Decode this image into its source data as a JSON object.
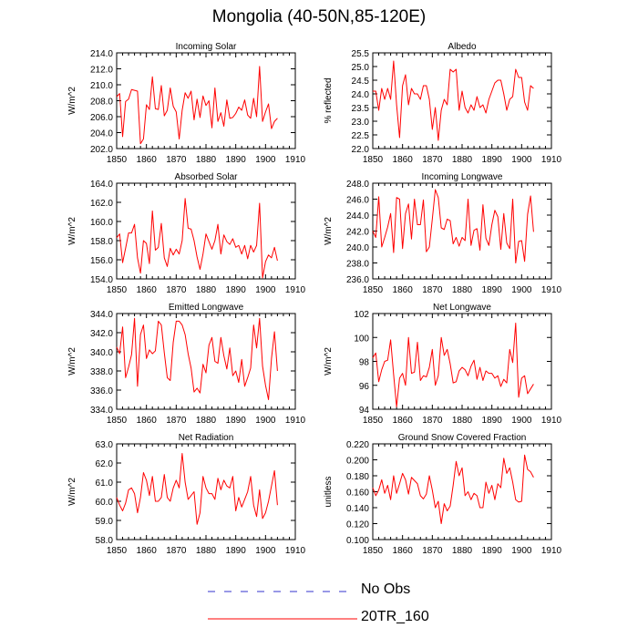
{
  "title": "Mongolia (40-50N,85-120E)",
  "colors": {
    "model": "#ff0000",
    "obs": "#3333cc",
    "axis": "#000000"
  },
  "legend": [
    {
      "label": "No Obs",
      "style": "dashed",
      "color": "#3333cc"
    },
    {
      "label": "20TR_160",
      "style": "solid",
      "color": "#ff0000"
    }
  ],
  "chart_data": [
    {
      "type": "line",
      "title": "Incoming Solar",
      "ylabel": "W/m^2",
      "xlim": [
        1850,
        1910
      ],
      "xticks": [
        1850,
        1860,
        1870,
        1880,
        1890,
        1900,
        1910
      ],
      "ylim": [
        202,
        214
      ],
      "yticks": [
        "202.0",
        "204.0",
        "206.0",
        "208.0",
        "210.0",
        "212.0",
        "214.0"
      ],
      "series": [
        {
          "name": "20TR_160",
          "x0": 1850,
          "values": [
            208.5,
            208.9,
            203.5,
            207.9,
            208.2,
            209.4,
            209.3,
            209.2,
            202.6,
            203.2,
            207.5,
            206.9,
            211.0,
            207.0,
            206.9,
            209.9,
            206.1,
            206.8,
            209.6,
            207.3,
            206.6,
            203.2,
            206.8,
            209.0,
            208.3,
            209.2,
            205.6,
            208.2,
            205.9,
            208.6,
            207.4,
            208.0,
            204.6,
            209.6,
            205.4,
            206.5,
            204.8,
            208.1,
            205.8,
            205.9,
            206.4,
            207.2,
            206.8,
            208.1,
            206.2,
            205.8,
            208.3,
            206.0,
            212.3,
            205.4,
            206.6,
            207.6,
            204.5,
            205.4,
            205.8
          ]
        }
      ]
    },
    {
      "type": "line",
      "title": "Albedo",
      "ylabel": "% reflected",
      "xlim": [
        1850,
        1910
      ],
      "xticks": [
        1850,
        1860,
        1870,
        1880,
        1890,
        1900,
        1910
      ],
      "ylim": [
        22,
        25.5
      ],
      "yticks": [
        "22.0",
        "22.5",
        "23.0",
        "23.5",
        "24.0",
        "24.5",
        "25.0",
        "25.5"
      ],
      "series": [
        {
          "name": "20TR_160",
          "x0": 1850,
          "values": [
            24.1,
            24.1,
            23.4,
            24.2,
            23.8,
            24.2,
            23.8,
            25.2,
            23.6,
            22.4,
            24.3,
            24.7,
            23.6,
            24.2,
            24.0,
            24.0,
            23.8,
            24.3,
            24.3,
            23.8,
            22.7,
            23.5,
            22.3,
            23.4,
            23.8,
            23.6,
            24.9,
            24.8,
            24.9,
            23.4,
            24.1,
            23.5,
            23.3,
            23.6,
            23.4,
            23.9,
            23.5,
            23.6,
            23.3,
            23.8,
            24.1,
            24.4,
            24.5,
            24.5,
            24.0,
            23.4,
            23.8,
            23.9,
            24.9,
            24.6,
            24.6,
            23.7,
            23.4,
            24.3,
            24.2
          ]
        }
      ]
    },
    {
      "type": "line",
      "title": "Absorbed Solar",
      "ylabel": "W/m^2",
      "xlim": [
        1850,
        1910
      ],
      "xticks": [
        1850,
        1860,
        1870,
        1880,
        1890,
        1900,
        1910
      ],
      "ylim": [
        154,
        164
      ],
      "yticks": [
        "154.0",
        "156.0",
        "158.0",
        "160.0",
        "162.0",
        "164.0"
      ],
      "series": [
        {
          "name": "20TR_160",
          "x0": 1850,
          "values": [
            158.3,
            158.7,
            155.7,
            157.2,
            158.8,
            158.8,
            159.7,
            156.2,
            154.6,
            158.0,
            157.7,
            155.6,
            161.1,
            157.0,
            157.3,
            159.8,
            156.2,
            155.3,
            157.2,
            156.5,
            157.1,
            156.6,
            158.0,
            162.4,
            159.3,
            159.2,
            158.0,
            156.3,
            155.0,
            156.6,
            158.7,
            157.9,
            157.1,
            158.0,
            159.7,
            156.6,
            158.6,
            157.9,
            157.6,
            158.2,
            157.3,
            157.5,
            156.6,
            157.5,
            156.1,
            157.5,
            156.8,
            157.5,
            161.9,
            154.1,
            155.8,
            156.5,
            156.2,
            157.3,
            155.9
          ]
        }
      ]
    },
    {
      "type": "line",
      "title": "Incoming Longwave",
      "ylabel": "W/m^2",
      "xlim": [
        1850,
        1910
      ],
      "xticks": [
        1850,
        1860,
        1870,
        1880,
        1890,
        1900,
        1910
      ],
      "ylim": [
        236,
        248
      ],
      "yticks": [
        "236.0",
        "238.0",
        "240.0",
        "242.0",
        "244.0",
        "246.0",
        "248.0"
      ],
      "series": [
        {
          "name": "20TR_160",
          "x0": 1850,
          "values": [
            242.0,
            241.2,
            246.3,
            240.0,
            241.2,
            242.5,
            244.2,
            239.3,
            246.2,
            246.0,
            239.8,
            244.2,
            245.4,
            241.0,
            246.0,
            242.8,
            242.8,
            245.9,
            239.4,
            240.0,
            243.5,
            247.2,
            246.2,
            242.4,
            242.2,
            243.5,
            243.3,
            240.4,
            241.2,
            240.1,
            241.2,
            240.8,
            246.0,
            240.2,
            242.1,
            242.3,
            239.6,
            245.3,
            241.1,
            240.2,
            242.8,
            244.6,
            243.8,
            239.7,
            244.2,
            240.5,
            239.8,
            246.0,
            238.0,
            240.7,
            240.8,
            238.2,
            244.1,
            246.4,
            241.9
          ]
        }
      ]
    },
    {
      "type": "line",
      "title": "Emitted Longwave",
      "ylabel": "W/m^2",
      "xlim": [
        1850,
        1910
      ],
      "xticks": [
        1850,
        1860,
        1870,
        1880,
        1890,
        1900,
        1910
      ],
      "ylim": [
        334,
        344
      ],
      "yticks": [
        "334.0",
        "336.0",
        "338.0",
        "340.0",
        "342.0",
        "344.0"
      ],
      "series": [
        {
          "name": "20TR_160",
          "x0": 1850,
          "values": [
            340.5,
            339.8,
            342.6,
            337.3,
            338.4,
            339.7,
            343.5,
            336.4,
            341.8,
            342.8,
            339.3,
            340.2,
            339.8,
            340.1,
            343.2,
            342.8,
            339.9,
            337.3,
            337.0,
            341.0,
            343.2,
            343.2,
            342.8,
            341.8,
            339.8,
            338.3,
            335.8,
            336.2,
            335.7,
            338.7,
            337.8,
            340.7,
            341.5,
            339.0,
            338.8,
            341.5,
            339.6,
            338.2,
            340.4,
            337.5,
            338.0,
            336.8,
            339.2,
            336.4,
            337.3,
            338.3,
            342.8,
            340.4,
            343.5,
            338.5,
            336.5,
            335.0,
            339.3,
            342.1,
            338.0
          ]
        }
      ]
    },
    {
      "type": "line",
      "title": "Net Longwave",
      "ylabel": "W/m^2",
      "xlim": [
        1850,
        1910
      ],
      "xticks": [
        1850,
        1860,
        1870,
        1880,
        1890,
        1900,
        1910
      ],
      "ylim": [
        94,
        102
      ],
      "yticks": [
        "94",
        "96",
        "98",
        "100",
        "102"
      ],
      "series": [
        {
          "name": "20TR_160",
          "x0": 1850,
          "values": [
            98.3,
            98.7,
            96.3,
            97.3,
            98.0,
            98.1,
            99.8,
            96.9,
            94.2,
            96.6,
            97.0,
            96.0,
            100.0,
            97.0,
            97.1,
            99.6,
            96.4,
            96.8,
            96.7,
            97.5,
            99.0,
            96.0,
            96.8,
            100.0,
            98.5,
            99.0,
            97.8,
            96.2,
            96.3,
            97.2,
            97.5,
            97.3,
            96.8,
            97.6,
            98.1,
            96.5,
            97.5,
            96.4,
            97.2,
            97.0,
            97.0,
            96.6,
            96.8,
            95.9,
            96.5,
            96.2,
            99.0,
            97.9,
            101.2,
            95.0,
            96.6,
            96.8,
            95.3,
            95.7,
            96.1
          ]
        }
      ]
    },
    {
      "type": "line",
      "title": "Net Radiation",
      "ylabel": "W/m^2",
      "xlim": [
        1850,
        1910
      ],
      "xticks": [
        1850,
        1860,
        1870,
        1880,
        1890,
        1900,
        1910
      ],
      "ylim": [
        58,
        63
      ],
      "yticks": [
        "58.0",
        "59.0",
        "60.0",
        "61.0",
        "62.0",
        "63.0"
      ],
      "series": [
        {
          "name": "20TR_160",
          "x0": 1850,
          "values": [
            60.2,
            59.8,
            59.5,
            59.9,
            60.6,
            60.7,
            60.4,
            59.4,
            60.2,
            61.5,
            61.1,
            60.3,
            61.3,
            60.0,
            60.0,
            60.2,
            61.4,
            60.2,
            60.0,
            60.7,
            61.1,
            60.7,
            62.5,
            61.0,
            60.1,
            60.3,
            60.5,
            58.8,
            59.4,
            61.3,
            60.7,
            60.4,
            60.4,
            60.1,
            61.2,
            60.6,
            61.1,
            60.8,
            60.7,
            61.3,
            59.5,
            60.2,
            59.7,
            60.1,
            60.5,
            61.3,
            59.8,
            59.2,
            60.6,
            59.1,
            59.4,
            60.0,
            60.8,
            61.6,
            59.8
          ]
        }
      ]
    },
    {
      "type": "line",
      "title": "Ground Snow Covered Fraction",
      "ylabel": "unitless",
      "xlim": [
        1850,
        1910
      ],
      "xticks": [
        1850,
        1860,
        1870,
        1880,
        1890,
        1900,
        1910
      ],
      "ylim": [
        0.1,
        0.22
      ],
      "yticks": [
        "0.100",
        "0.120",
        "0.140",
        "0.160",
        "0.180",
        "0.200",
        "0.220"
      ],
      "series": [
        {
          "name": "20TR_160",
          "x0": 1850,
          "values": [
            0.165,
            0.155,
            0.162,
            0.175,
            0.158,
            0.168,
            0.15,
            0.18,
            0.158,
            0.17,
            0.183,
            0.175,
            0.157,
            0.178,
            0.174,
            0.17,
            0.155,
            0.151,
            0.157,
            0.18,
            0.162,
            0.14,
            0.148,
            0.12,
            0.145,
            0.136,
            0.142,
            0.168,
            0.198,
            0.18,
            0.19,
            0.155,
            0.16,
            0.15,
            0.158,
            0.155,
            0.14,
            0.14,
            0.172,
            0.158,
            0.168,
            0.15,
            0.17,
            0.165,
            0.202,
            0.183,
            0.19,
            0.172,
            0.15,
            0.147,
            0.148,
            0.206,
            0.188,
            0.185,
            0.178
          ]
        }
      ]
    }
  ]
}
